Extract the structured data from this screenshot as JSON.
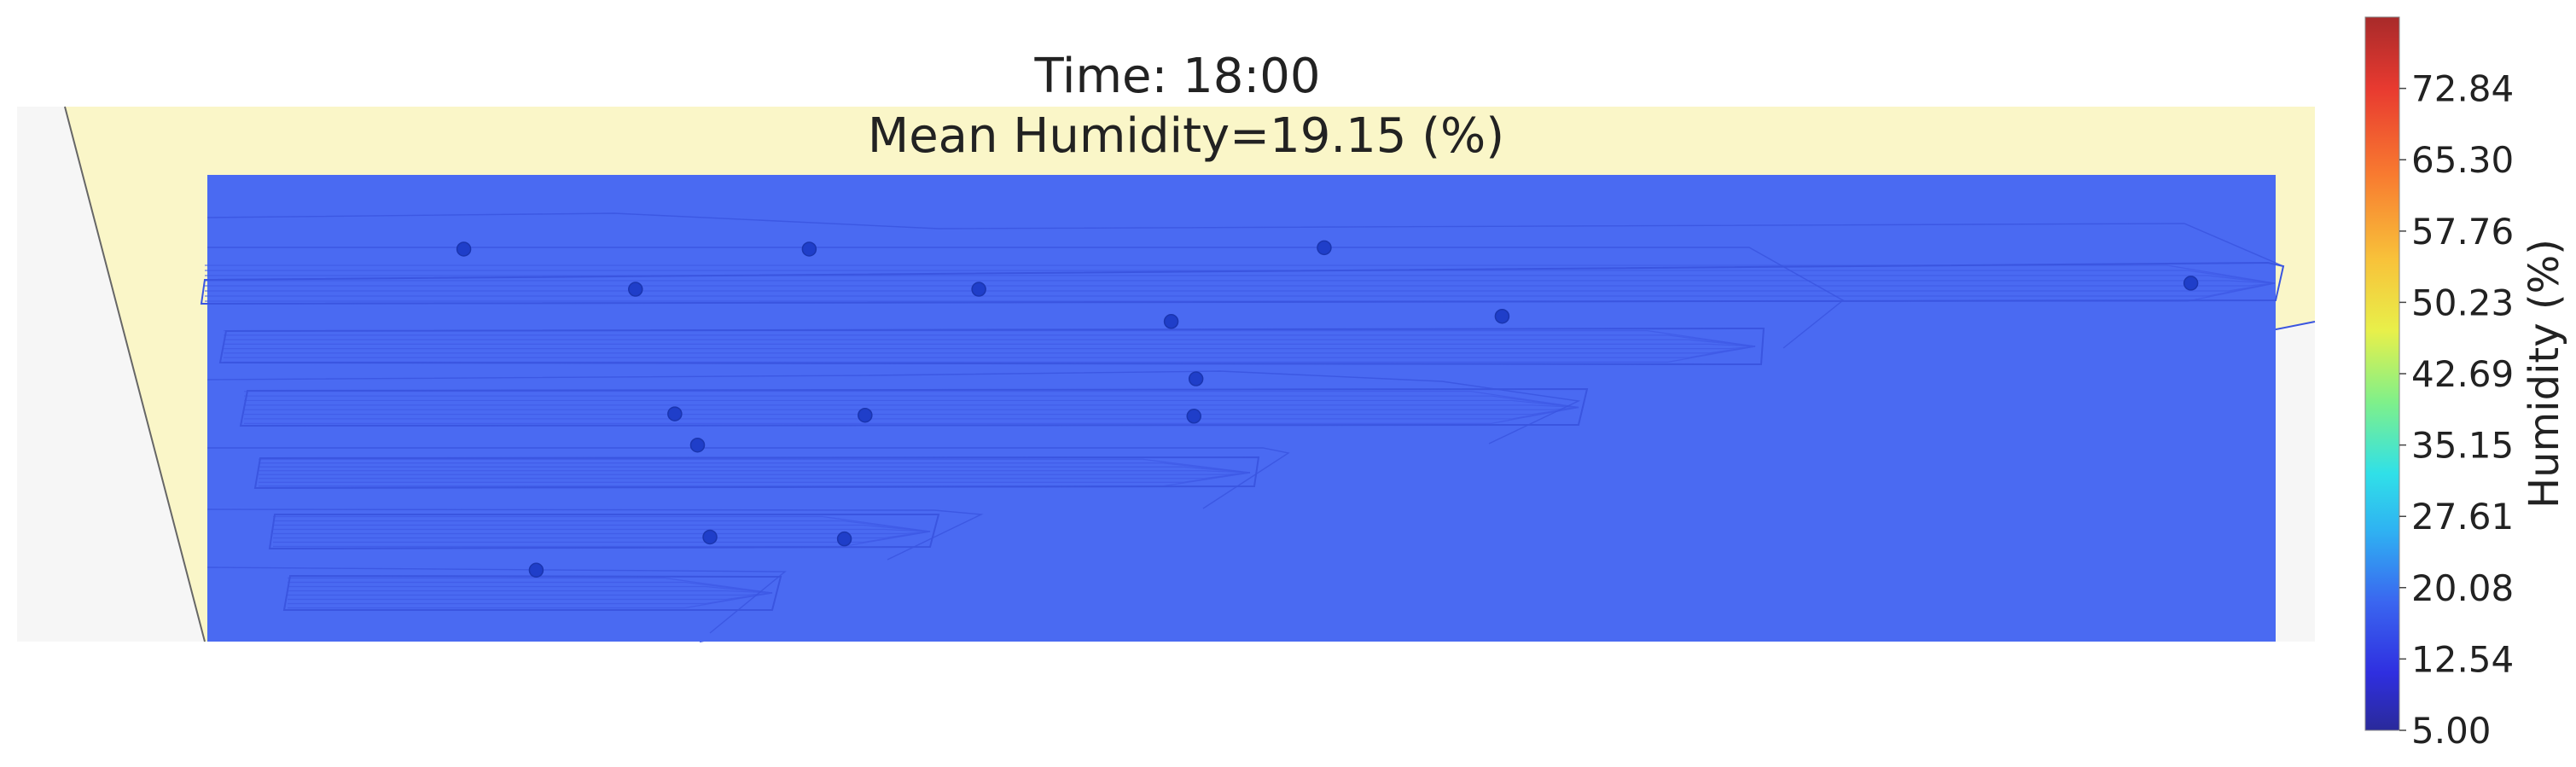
{
  "chart_data": {
    "type": "heatmap",
    "title_line1": "Time: 18:00",
    "title_line2": "Mean Humidity=19.15 (%)",
    "colorbar": {
      "label": "Humidity (%)",
      "min": 5.0,
      "max": 80.38,
      "ticks": [
        5.0,
        12.54,
        20.08,
        27.61,
        35.15,
        42.69,
        50.23,
        57.76,
        65.3,
        72.84
      ],
      "tick_labels": [
        "5.00",
        "12.54",
        "20.08",
        "27.61",
        "35.15",
        "42.69",
        "50.23",
        "57.76",
        "65.30",
        "72.84"
      ],
      "colormap": "jet"
    },
    "field_value": 19.15,
    "sensors": [
      {
        "x": 0.124,
        "y": 0.159
      },
      {
        "x": 0.291,
        "y": 0.159
      },
      {
        "x": 0.54,
        "y": 0.156
      },
      {
        "x": 0.207,
        "y": 0.245
      },
      {
        "x": 0.373,
        "y": 0.245
      },
      {
        "x": 0.959,
        "y": 0.232
      },
      {
        "x": 0.466,
        "y": 0.314
      },
      {
        "x": 0.626,
        "y": 0.303
      },
      {
        "x": 0.478,
        "y": 0.437
      },
      {
        "x": 0.226,
        "y": 0.512
      },
      {
        "x": 0.318,
        "y": 0.515
      },
      {
        "x": 0.477,
        "y": 0.517
      },
      {
        "x": 0.237,
        "y": 0.579
      },
      {
        "x": 0.243,
        "y": 0.776
      },
      {
        "x": 0.308,
        "y": 0.78
      },
      {
        "x": 0.159,
        "y": 0.847
      }
    ],
    "colors": {
      "field": "#4a6af2",
      "field_dark": "#3f5ae6",
      "shelf_line": "#3a55e0",
      "sensor": "#1f3ec9",
      "room_fill": "#faf6c8",
      "room_gray": "#f6f6f6"
    }
  }
}
